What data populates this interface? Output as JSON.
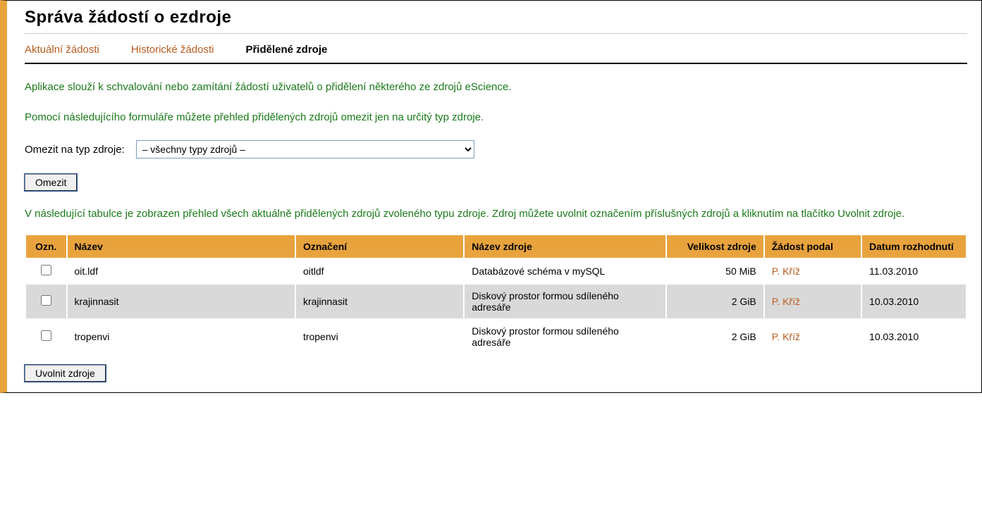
{
  "page": {
    "title": "Správa žádostí o ezdroje"
  },
  "tabs": {
    "current": "Aktuální žádosti",
    "history": "Historické žádosti",
    "assigned": "Přidělené zdroje"
  },
  "intro": {
    "line1": "Aplikace slouží k schvalování nebo zamítání žádostí uživatelů o přidělení některého ze zdrojů eScience.",
    "line2": "Pomocí následujícího formuláře můžete přehled přidělených zdrojů omezit jen na určitý typ zdroje."
  },
  "filter": {
    "label": "Omezit na typ zdroje:",
    "selected": "– všechny typy zdrojů –",
    "button": "Omezit"
  },
  "tableIntro": "V následující tabulce je zobrazen přehled všech aktuálně přidělených zdrojů zvoleného typu zdroje. Zdroj můžete uvolnit označením příslušných zdrojů a kliknutím na tlačítko Uvolnit zdroje.",
  "table": {
    "headers": {
      "ozn": "Ozn.",
      "nazev": "Název",
      "oznaceni": "Označení",
      "nazevZdroje": "Název zdroje",
      "velikost": "Velikost zdroje",
      "zadost": "Žádost podal",
      "datum": "Datum rozhodnutí"
    },
    "rows": [
      {
        "nazev": "oit.ldf",
        "oznaceni": "oitldf",
        "nazevZdroje": "Databázové schéma v mySQL",
        "velikost": "50 MiB",
        "zadost": "P. Kříž",
        "datum": "11.03.2010"
      },
      {
        "nazev": "krajinnasit",
        "oznaceni": "krajinnasit",
        "nazevZdroje": "Diskový prostor formou sdíleného adresáře",
        "velikost": "2 GiB",
        "zadost": "P. Kříž",
        "datum": "10.03.2010"
      },
      {
        "nazev": "tropenvi",
        "oznaceni": "tropenvi",
        "nazevZdroje": "Diskový prostor formou sdíleného adresáře",
        "velikost": "2 GiB",
        "zadost": "P. Kříž",
        "datum": "10.03.2010"
      }
    ]
  },
  "footer": {
    "releaseBtn": "Uvolnit zdroje"
  },
  "colors": {
    "accent": "#e8a33d",
    "link": "#b85c1e",
    "introText": "#1a7a1a",
    "rowEven": "#d9d9d9",
    "rowOdd": "#ffffff"
  }
}
